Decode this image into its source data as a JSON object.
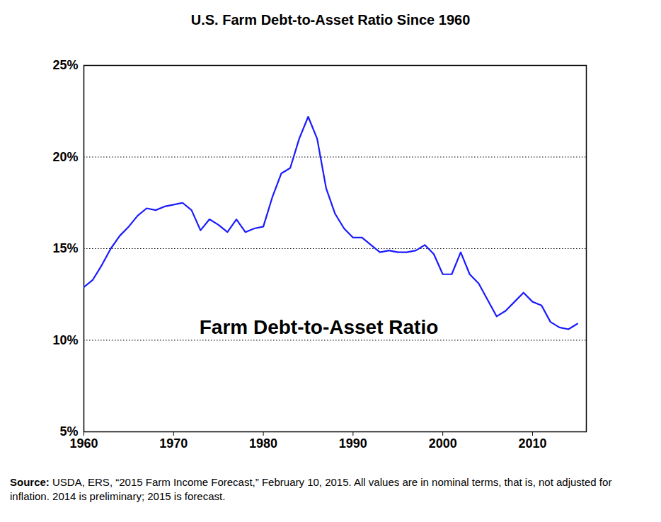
{
  "chart_data": {
    "type": "line",
    "title": "U.S. Farm Debt-to-Asset Ratio Since 1960",
    "annotation": "Farm Debt-to-Asset Ratio",
    "source_label": "Source:",
    "source": "USDA, ERS, “2015 Farm Income Forecast,” February 10, 2015. All values are in nominal terms, that is, not adjusted for inflation. 2014 is preliminary; 2015 is forecast.",
    "x": [
      1960,
      1961,
      1962,
      1963,
      1964,
      1965,
      1966,
      1967,
      1968,
      1969,
      1970,
      1971,
      1972,
      1973,
      1974,
      1975,
      1976,
      1977,
      1978,
      1979,
      1980,
      1981,
      1982,
      1983,
      1984,
      1985,
      1986,
      1987,
      1988,
      1989,
      1990,
      1991,
      1992,
      1993,
      1994,
      1995,
      1996,
      1997,
      1998,
      1999,
      2000,
      2001,
      2002,
      2003,
      2004,
      2005,
      2006,
      2007,
      2008,
      2009,
      2010,
      2011,
      2012,
      2013,
      2014,
      2015
    ],
    "values": [
      12.9,
      13.3,
      14.1,
      15.0,
      15.7,
      16.2,
      16.8,
      17.2,
      17.1,
      17.3,
      17.4,
      17.5,
      17.1,
      16.0,
      16.6,
      16.3,
      15.9,
      16.6,
      15.9,
      16.1,
      16.2,
      17.8,
      19.1,
      19.4,
      21.0,
      22.2,
      21.0,
      18.3,
      16.9,
      16.1,
      15.6,
      15.6,
      15.2,
      14.8,
      14.9,
      14.8,
      14.8,
      14.9,
      15.2,
      14.7,
      13.6,
      13.6,
      14.8,
      13.6,
      13.1,
      12.2,
      11.3,
      11.6,
      12.1,
      12.6,
      12.1,
      11.9,
      11.0,
      10.7,
      10.6,
      10.9
    ],
    "color": "#1a1aff",
    "xlim": [
      1960,
      2016
    ],
    "xticks": [
      1960,
      1970,
      1980,
      1990,
      2000,
      2010
    ],
    "ylim": [
      5,
      25
    ],
    "yticks": [
      {
        "value": 5,
        "label": "5%"
      },
      {
        "value": 10,
        "label": "10%"
      },
      {
        "value": 15,
        "label": "15%"
      },
      {
        "value": 20,
        "label": "20%"
      },
      {
        "value": 25,
        "label": "25%"
      }
    ],
    "grid": true
  }
}
